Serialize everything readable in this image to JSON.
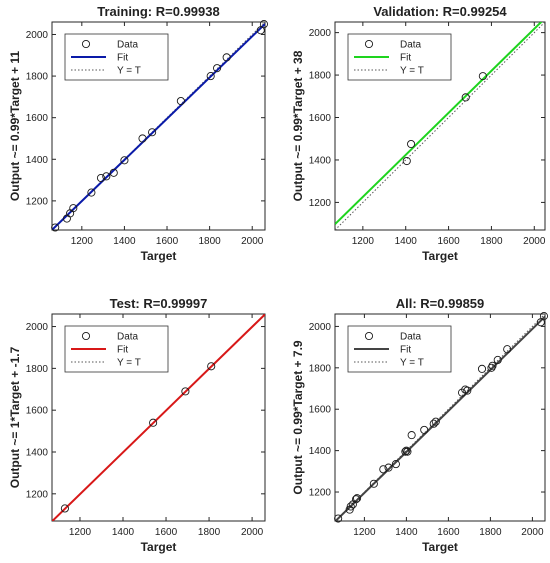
{
  "chart_data": [
    {
      "type": "scatter",
      "title": "Training: R=0.99938",
      "xlabel": "Target",
      "ylabel": "Output ~= 0.99*Target + 11",
      "xlim": [
        1060,
        2060
      ],
      "ylim": [
        1060,
        2060
      ],
      "xticks": [
        1200,
        1400,
        1600,
        1800,
        2000
      ],
      "yticks": [
        1200,
        1400,
        1600,
        1800,
        2000
      ],
      "fit_color": "#0a1aa8",
      "legend_position": "top-left",
      "legend": [
        "Data",
        "Fit",
        "Y = T"
      ],
      "fit": {
        "slope": 0.99,
        "intercept": 11
      },
      "points": [
        [
          1075,
          1072
        ],
        [
          1130,
          1115
        ],
        [
          1145,
          1140
        ],
        [
          1160,
          1165
        ],
        [
          1245,
          1240
        ],
        [
          1290,
          1310
        ],
        [
          1315,
          1318
        ],
        [
          1350,
          1335
        ],
        [
          1400,
          1395
        ],
        [
          1485,
          1500
        ],
        [
          1530,
          1530
        ],
        [
          1665,
          1680
        ],
        [
          1805,
          1800
        ],
        [
          1835,
          1838
        ],
        [
          1880,
          1890
        ],
        [
          2040,
          2020
        ],
        [
          2055,
          2050
        ]
      ]
    },
    {
      "type": "scatter",
      "title": "Validation: R=0.99254",
      "xlabel": "Target",
      "ylabel": "Output ~= 0.99*Target + 38",
      "xlim": [
        1070,
        2050
      ],
      "ylim": [
        1070,
        2050
      ],
      "xticks": [
        1200,
        1400,
        1600,
        1800,
        2000
      ],
      "yticks": [
        1200,
        1400,
        1600,
        1800,
        2000
      ],
      "fit_color": "#1ed41e",
      "legend_position": "top-left",
      "legend": [
        "Data",
        "Fit",
        "Y = T"
      ],
      "fit": {
        "slope": 0.99,
        "intercept": 38
      },
      "points": [
        [
          1405,
          1395
        ],
        [
          1425,
          1475
        ],
        [
          1680,
          1695
        ],
        [
          1760,
          1795
        ]
      ]
    },
    {
      "type": "scatter",
      "title": "Test: R=0.99997",
      "xlabel": "Target",
      "ylabel": "Output ~= 1*Target + -1.7",
      "xlim": [
        1070,
        2060
      ],
      "ylim": [
        1070,
        2060
      ],
      "xticks": [
        1200,
        1400,
        1600,
        1800,
        2000
      ],
      "yticks": [
        1200,
        1400,
        1600,
        1800,
        2000
      ],
      "fit_color": "#d81818",
      "legend_position": "top-left",
      "legend": [
        "Data",
        "Fit",
        "Y = T"
      ],
      "fit": {
        "slope": 1,
        "intercept": -1.7
      },
      "points": [
        [
          1130,
          1130
        ],
        [
          1540,
          1540
        ],
        [
          1690,
          1690
        ],
        [
          1810,
          1810
        ]
      ]
    },
    {
      "type": "scatter",
      "title": "All: R=0.99859",
      "xlabel": "Target",
      "ylabel": "Output ~= 0.99*Target + 7.9",
      "xlim": [
        1060,
        2060
      ],
      "ylim": [
        1060,
        2060
      ],
      "xticks": [
        1200,
        1400,
        1600,
        1800,
        2000
      ],
      "yticks": [
        1200,
        1400,
        1600,
        1800,
        2000
      ],
      "fit_color": "#444444",
      "legend_position": "top-left",
      "legend": [
        "Data",
        "Fit",
        "Y = T"
      ],
      "fit": {
        "slope": 0.99,
        "intercept": 7.9
      },
      "points": [
        [
          1075,
          1072
        ],
        [
          1130,
          1115
        ],
        [
          1135,
          1130
        ],
        [
          1145,
          1140
        ],
        [
          1160,
          1165
        ],
        [
          1165,
          1170
        ],
        [
          1245,
          1240
        ],
        [
          1290,
          1310
        ],
        [
          1315,
          1318
        ],
        [
          1350,
          1335
        ],
        [
          1395,
          1395
        ],
        [
          1405,
          1395
        ],
        [
          1400,
          1400
        ],
        [
          1425,
          1475
        ],
        [
          1485,
          1500
        ],
        [
          1530,
          1530
        ],
        [
          1540,
          1540
        ],
        [
          1665,
          1680
        ],
        [
          1680,
          1695
        ],
        [
          1690,
          1690
        ],
        [
          1760,
          1795
        ],
        [
          1805,
          1800
        ],
        [
          1810,
          1810
        ],
        [
          1835,
          1838
        ],
        [
          1880,
          1890
        ],
        [
          2040,
          2020
        ],
        [
          2055,
          2050
        ]
      ]
    }
  ]
}
